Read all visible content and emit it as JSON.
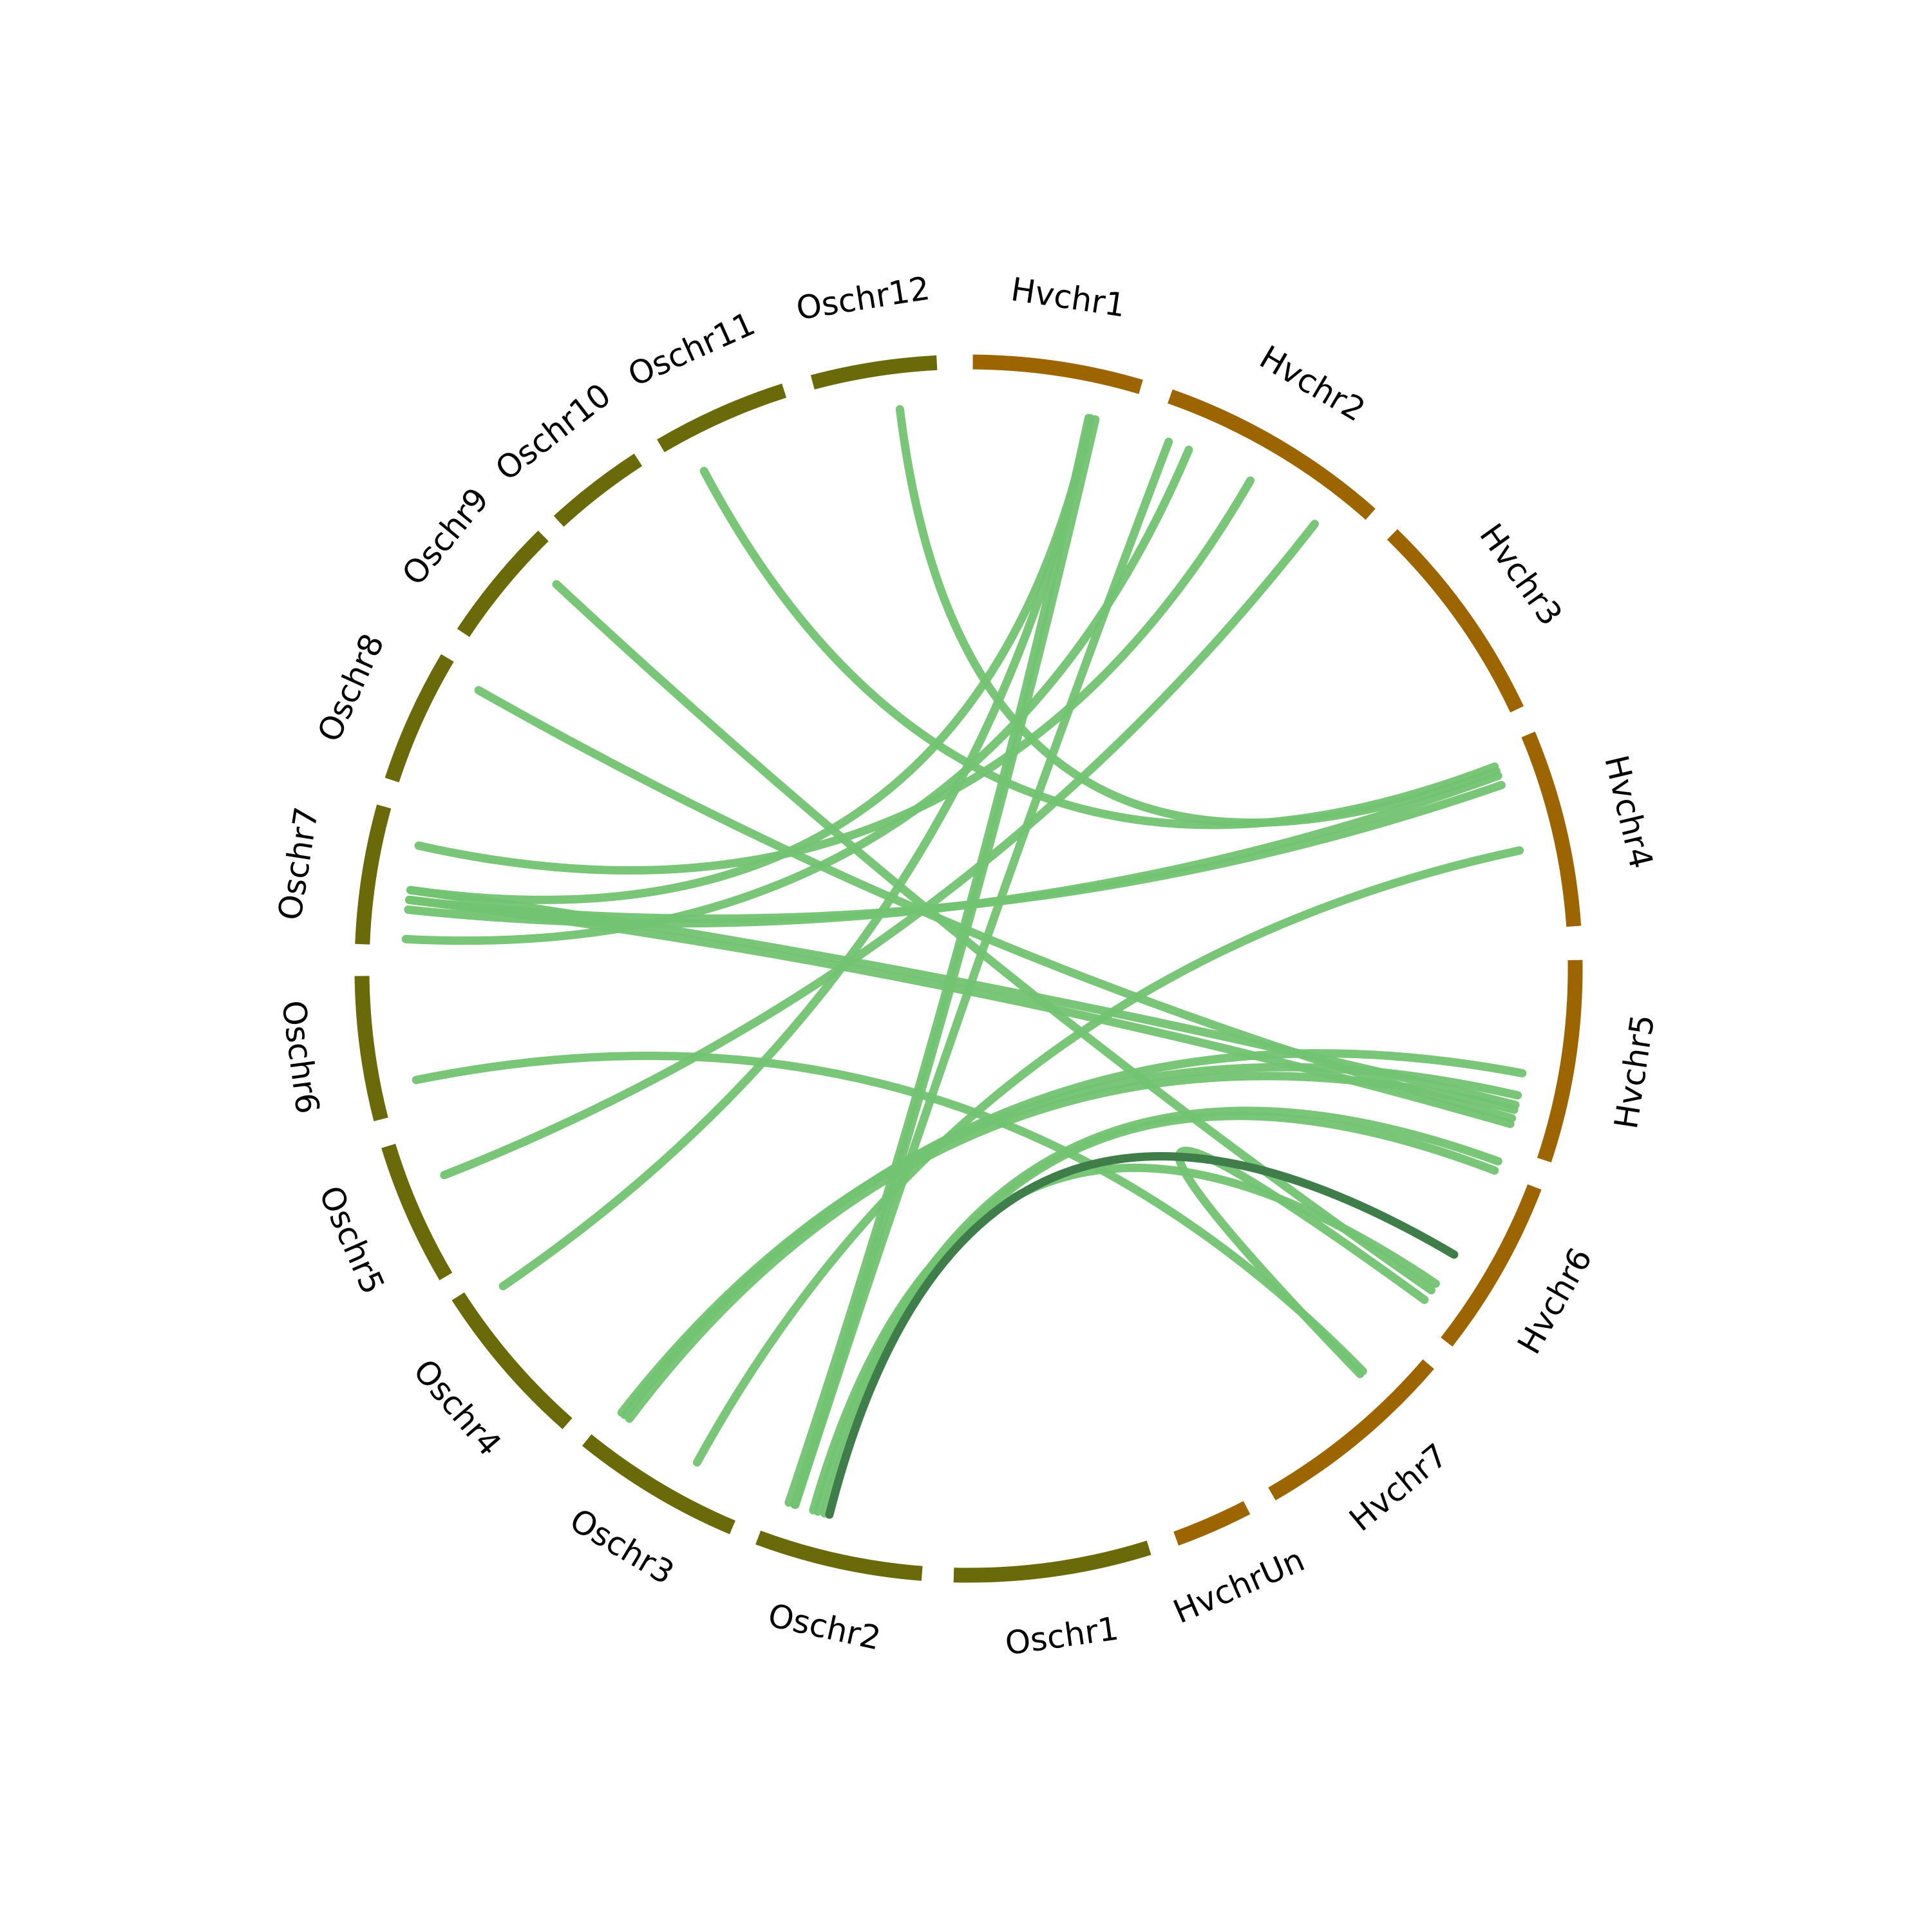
{
  "segments": [
    {
      "label": "Hvchr1"
    },
    {
      "label": "Hvchr2"
    },
    {
      "label": "Hvchr3"
    },
    {
      "label": "Hvchr4"
    },
    {
      "label": "Hvchr5"
    },
    {
      "label": "Hvchr6"
    },
    {
      "label": "Hvchr7"
    },
    {
      "label": "HvchrUn"
    },
    {
      "label": "Oschr1"
    },
    {
      "label": "Oschr2"
    },
    {
      "label": "Oschr3"
    },
    {
      "label": "Oschr4"
    },
    {
      "label": "Oschr5"
    },
    {
      "label": "Oschr6"
    },
    {
      "label": "Oschr7"
    },
    {
      "label": "Oschr8"
    },
    {
      "label": "Oschr9"
    },
    {
      "label": "Oschr10"
    },
    {
      "label": "Oschr11"
    },
    {
      "label": "Oschr12"
    }
  ]
}
